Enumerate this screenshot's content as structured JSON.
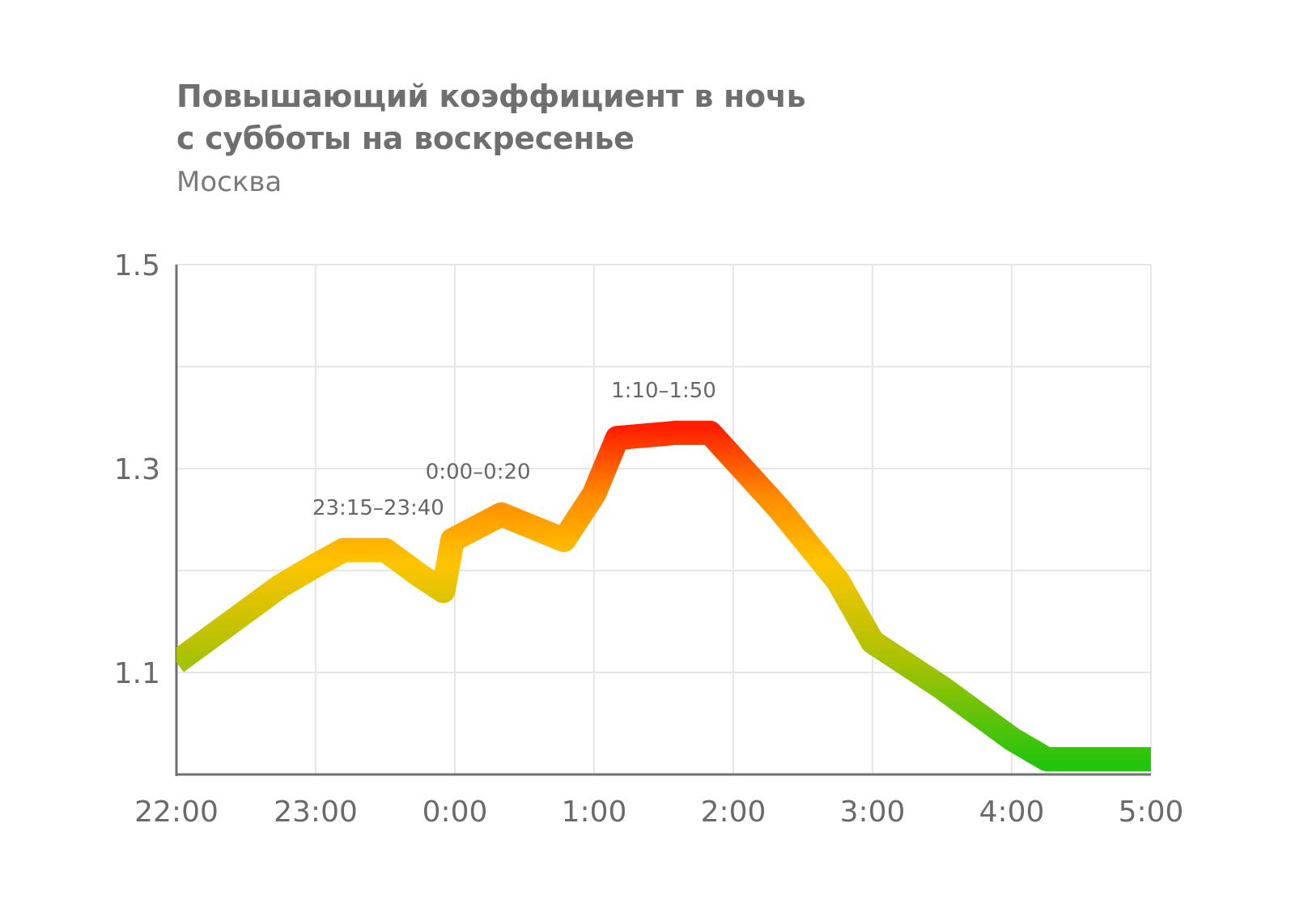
{
  "chart_data": {
    "type": "line",
    "title_lines": [
      "Повышающий коэффициент в ночь",
      "с субботы на воскресенье"
    ],
    "subtitle": "Москва",
    "xlabel": "",
    "ylabel": "",
    "x_tick_labels": [
      "22:00",
      "23:00",
      "0:00",
      "1:00",
      "2:00",
      "3:00",
      "4:00",
      "5:00"
    ],
    "x_range_hours": [
      0,
      7
    ],
    "y_ticks": [
      1.1,
      1.3,
      1.5
    ],
    "y_tick_labels": [
      "1.1",
      "1.3",
      "1.5"
    ],
    "ylim": [
      1.0,
      1.5
    ],
    "grid": true,
    "series": [
      {
        "x": [
          "22:00",
          "22:15",
          "22:30",
          "22:45",
          "23:00",
          "23:12",
          "23:30",
          "23:45",
          "23:55",
          "23:59",
          "0:20",
          "0:47",
          "1:00",
          "1:10",
          "1:35",
          "1:50",
          "2:20",
          "2:45",
          "3:00",
          "3:30",
          "4:00",
          "4:15",
          "5:00"
        ],
        "y": [
          1.11,
          1.135,
          1.16,
          1.185,
          1.205,
          1.22,
          1.22,
          1.195,
          1.18,
          1.23,
          1.255,
          1.23,
          1.275,
          1.33,
          1.335,
          1.335,
          1.26,
          1.19,
          1.13,
          1.085,
          1.035,
          1.015,
          1.015
        ]
      }
    ],
    "annotations": [
      {
        "text": "23:15–23:40",
        "x": "23:27",
        "y": 1.22
      },
      {
        "text": "0:00–0:20",
        "x": "0:10",
        "y": 1.255
      },
      {
        "text": "1:10–1:50",
        "x": "1:30",
        "y": 1.335
      }
    ],
    "colors": {
      "low": "#2cbd0d",
      "mid": "#ffc300",
      "high": "#ff2200",
      "grid": "#e6e6e6",
      "axis": "#707070"
    }
  }
}
